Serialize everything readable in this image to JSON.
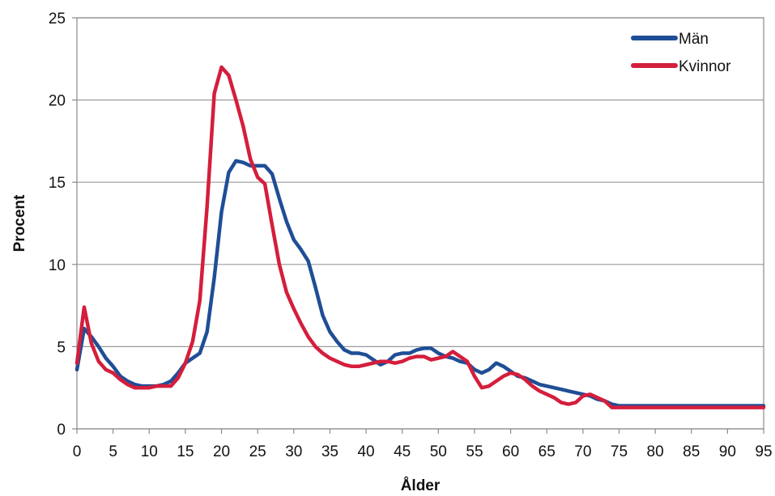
{
  "chart_data": {
    "type": "line",
    "title": "",
    "xlabel": "Ålder",
    "ylabel": "Procent",
    "xlim": [
      0,
      95
    ],
    "ylim": [
      0,
      25
    ],
    "x_ticks": [
      0,
      5,
      10,
      15,
      20,
      25,
      30,
      35,
      40,
      45,
      50,
      55,
      60,
      65,
      70,
      75,
      80,
      85,
      90,
      95
    ],
    "y_ticks": [
      0,
      5,
      10,
      15,
      20,
      25
    ],
    "grid": "horizontal",
    "legend_position": "top-right",
    "x": [
      0,
      1,
      2,
      3,
      4,
      5,
      6,
      7,
      8,
      9,
      10,
      11,
      12,
      13,
      14,
      15,
      16,
      17,
      18,
      19,
      20,
      21,
      22,
      23,
      24,
      25,
      26,
      27,
      28,
      29,
      30,
      31,
      32,
      33,
      34,
      35,
      36,
      37,
      38,
      39,
      40,
      41,
      42,
      43,
      44,
      45,
      46,
      47,
      48,
      49,
      50,
      51,
      52,
      53,
      54,
      55,
      56,
      57,
      58,
      59,
      60,
      61,
      62,
      63,
      64,
      65,
      66,
      67,
      68,
      69,
      70,
      71,
      72,
      73,
      74,
      75,
      76,
      77,
      78,
      79,
      80,
      81,
      82,
      83,
      84,
      85,
      86,
      87,
      88,
      89,
      90,
      91,
      92,
      93,
      94,
      95
    ],
    "series": [
      {
        "name": "Män",
        "color": "#1f4e96",
        "values": [
          3.6,
          6.1,
          5.6,
          5.0,
          4.3,
          3.8,
          3.2,
          2.9,
          2.7,
          2.6,
          2.6,
          2.6,
          2.7,
          2.9,
          3.4,
          4.0,
          4.3,
          4.6,
          5.9,
          9.2,
          13.2,
          15.6,
          16.3,
          16.2,
          16.0,
          16.0,
          16.0,
          15.5,
          14.0,
          12.6,
          11.5,
          10.9,
          10.2,
          8.6,
          6.9,
          5.9,
          5.3,
          4.8,
          4.6,
          4.6,
          4.5,
          4.2,
          3.9,
          4.1,
          4.5,
          4.6,
          4.6,
          4.8,
          4.9,
          4.9,
          4.6,
          4.4,
          4.3,
          4.1,
          4.0,
          3.6,
          3.4,
          3.6,
          4.0,
          3.8,
          3.5,
          3.2,
          3.1,
          2.9,
          2.7,
          2.6,
          2.5,
          2.4,
          2.3,
          2.2,
          2.1,
          2.0,
          1.8,
          1.7,
          1.5,
          1.4,
          1.4,
          1.4,
          1.4,
          1.4,
          1.4,
          1.4,
          1.4,
          1.4,
          1.4,
          1.4,
          1.4,
          1.4,
          1.4,
          1.4,
          1.4,
          1.4,
          1.4,
          1.4,
          1.4,
          1.4
        ]
      },
      {
        "name": "Kvinnor",
        "color": "#d41e3c",
        "values": [
          4.0,
          7.4,
          5.2,
          4.1,
          3.6,
          3.4,
          3.0,
          2.7,
          2.5,
          2.5,
          2.5,
          2.6,
          2.6,
          2.6,
          3.1,
          4.0,
          5.3,
          7.8,
          13.5,
          20.4,
          22.0,
          21.5,
          20.0,
          18.4,
          16.4,
          15.3,
          14.9,
          12.4,
          10.0,
          8.3,
          7.3,
          6.4,
          5.6,
          5.0,
          4.6,
          4.3,
          4.1,
          3.9,
          3.8,
          3.8,
          3.9,
          4.0,
          4.1,
          4.1,
          4.0,
          4.1,
          4.3,
          4.4,
          4.4,
          4.2,
          4.3,
          4.4,
          4.7,
          4.4,
          4.1,
          3.2,
          2.5,
          2.6,
          2.9,
          3.2,
          3.4,
          3.3,
          3.0,
          2.6,
          2.3,
          2.1,
          1.9,
          1.6,
          1.5,
          1.6,
          2.0,
          2.1,
          1.9,
          1.7,
          1.3,
          1.3,
          1.3,
          1.3,
          1.3,
          1.3,
          1.3,
          1.3,
          1.3,
          1.3,
          1.3,
          1.3,
          1.3,
          1.3,
          1.3,
          1.3,
          1.3,
          1.3,
          1.3,
          1.3,
          1.3,
          1.3
        ]
      }
    ]
  }
}
